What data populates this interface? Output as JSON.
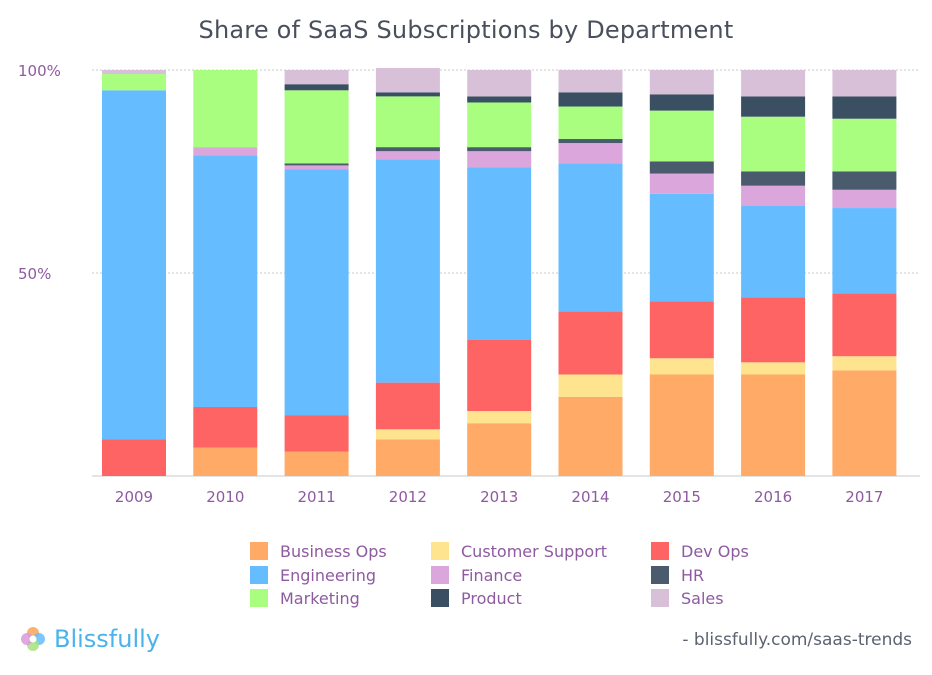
{
  "chart_data": {
    "type": "bar",
    "stacked": true,
    "title": "Share of SaaS Subscriptions by Department",
    "xlabel": "",
    "ylabel": "",
    "ylim": [
      0,
      100
    ],
    "y_ticks": [
      "100%",
      "50%"
    ],
    "y_tick_values": [
      100,
      50
    ],
    "grid": true,
    "legend_position": "bottom",
    "categories": [
      "2009",
      "2010",
      "2011",
      "2012",
      "2013",
      "2014",
      "2015",
      "2016",
      "2017"
    ],
    "series": [
      {
        "name": "Business Ops",
        "color": "#ffaa66",
        "values": [
          0,
          7,
          6,
          9,
          13,
          19.5,
          25,
          25,
          26
        ]
      },
      {
        "name": "Customer Support",
        "color": "#fee48f",
        "values": [
          0,
          0,
          0,
          2.5,
          3,
          5.5,
          4,
          3,
          3.5
        ]
      },
      {
        "name": "Dev Ops",
        "color": "#ff6465",
        "values": [
          9,
          10,
          9,
          11.5,
          17.5,
          15.5,
          14,
          16,
          15.5
        ]
      },
      {
        "name": "Engineering",
        "color": "#65bcff",
        "values": [
          86,
          62,
          60.5,
          55,
          42.5,
          36.5,
          26.5,
          22.5,
          21
        ]
      },
      {
        "name": "Finance",
        "color": "#dba6dc",
        "values": [
          0,
          2,
          1,
          2,
          4,
          5,
          5,
          5,
          4.5
        ]
      },
      {
        "name": "HR",
        "color": "#4a5b6e",
        "values": [
          0,
          0,
          0.5,
          1,
          1,
          1,
          3,
          3.5,
          4.5
        ]
      },
      {
        "name": "Marketing",
        "color": "#a9fe7f",
        "values": [
          4,
          19,
          18,
          12.5,
          11,
          8,
          12.5,
          13.5,
          13
        ]
      },
      {
        "name": "Product",
        "color": "#3a4f62",
        "values": [
          0,
          0,
          1.5,
          1,
          1.5,
          3.5,
          4,
          5,
          5.5
        ]
      },
      {
        "name": "Sales",
        "color": "#d9c0d9",
        "values": [
          1,
          0,
          3.5,
          6,
          6.5,
          5.5,
          6,
          6.5,
          6.5
        ]
      }
    ]
  },
  "legend": {
    "items": [
      {
        "label": "Business Ops",
        "color": "#ffaa66"
      },
      {
        "label": "Customer Support",
        "color": "#fee48f"
      },
      {
        "label": "Dev Ops",
        "color": "#ff6465"
      },
      {
        "label": "Engineering",
        "color": "#65bcff"
      },
      {
        "label": "Finance",
        "color": "#dba6dc"
      },
      {
        "label": "HR",
        "color": "#4a5b6e"
      },
      {
        "label": "Marketing",
        "color": "#a9fe7f"
      },
      {
        "label": "Product",
        "color": "#3a4f62"
      },
      {
        "label": "Sales",
        "color": "#d9c0d9"
      }
    ]
  },
  "branding": {
    "logo_text": "Blissfully",
    "source_text": "- blissfully.com/saas-trends"
  },
  "colors": {
    "title": "#4a4f5c",
    "axis_text": "#8e5aa0",
    "grid": "#c9c9c9",
    "logo": "#49b3ea"
  }
}
